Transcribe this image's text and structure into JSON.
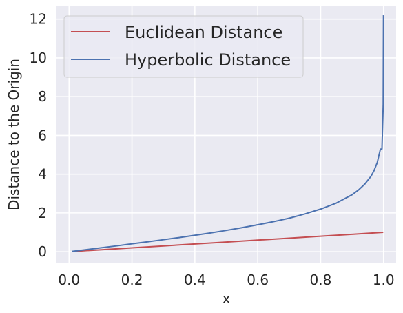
{
  "chart_data": {
    "type": "line",
    "xlabel": "x",
    "ylabel": "Distance to the Origin",
    "xlim": [
      -0.04,
      1.04
    ],
    "ylim": [
      -0.6,
      12.7
    ],
    "xticks": [
      0.0,
      0.2,
      0.4,
      0.6,
      0.8,
      1.0
    ],
    "xtick_labels": [
      "0.0",
      "0.2",
      "0.4",
      "0.6",
      "0.8",
      "1.0"
    ],
    "yticks": [
      0,
      2,
      4,
      6,
      8,
      10,
      12
    ],
    "ytick_labels": [
      "0",
      "2",
      "4",
      "6",
      "8",
      "10",
      "12"
    ],
    "grid": true,
    "legend_position": "top-left",
    "background": "#eaeaf2",
    "series": [
      {
        "name": "Euclidean Distance",
        "color": "#c44e52",
        "x": [
          0.01,
          0.1,
          0.2,
          0.3,
          0.4,
          0.5,
          0.6,
          0.7,
          0.8,
          0.9,
          0.999
        ],
        "y": [
          0.01,
          0.1,
          0.2,
          0.3,
          0.4,
          0.5,
          0.6,
          0.7,
          0.8,
          0.9,
          0.999
        ]
      },
      {
        "name": "Hyperbolic Distance",
        "color": "#4c72b0",
        "x": [
          0.01,
          0.05,
          0.1,
          0.15,
          0.2,
          0.25,
          0.3,
          0.35,
          0.4,
          0.45,
          0.5,
          0.55,
          0.6,
          0.65,
          0.7,
          0.75,
          0.8,
          0.85,
          0.9,
          0.92,
          0.94,
          0.96,
          0.97,
          0.98,
          0.99,
          0.995,
          0.999,
          0.9999
        ],
        "y": [
          0.02,
          0.1,
          0.2,
          0.3,
          0.41,
          0.51,
          0.62,
          0.73,
          0.85,
          0.97,
          1.1,
          1.24,
          1.39,
          1.55,
          1.73,
          1.95,
          2.2,
          2.51,
          2.94,
          3.18,
          3.48,
          3.89,
          4.19,
          4.6,
          5.29,
          5.3,
          7.6,
          12.2
        ]
      }
    ]
  }
}
